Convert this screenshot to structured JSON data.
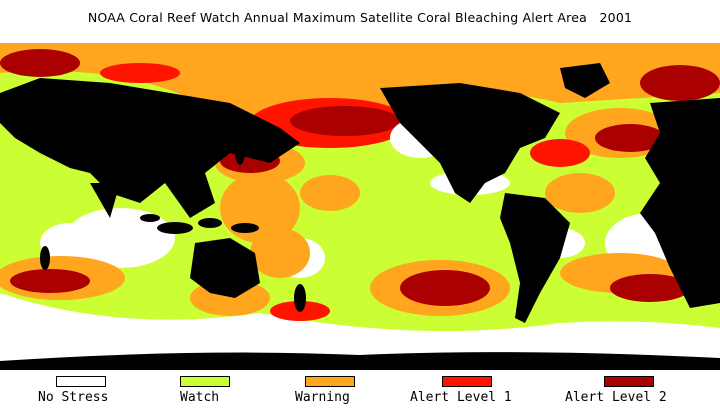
{
  "title": "NOAA Coral Reef Watch Annual Maximum Satellite Coral Bleaching Alert Area   2001",
  "colors": {
    "no_stress": "#ffffff",
    "watch": "#ccff33",
    "warning": "#ffa51e",
    "alert1": "#ff1400",
    "alert2": "#aa0000",
    "land": "#000000"
  },
  "legend": [
    {
      "label": "No Stress",
      "color": "#ffffff"
    },
    {
      "label": "Watch",
      "color": "#ccff33"
    },
    {
      "label": "Warning",
      "color": "#ffa51e"
    },
    {
      "label": "Alert Level 1",
      "color": "#ff1400"
    },
    {
      "label": "Alert Level 2",
      "color": "#aa0000"
    }
  ]
}
